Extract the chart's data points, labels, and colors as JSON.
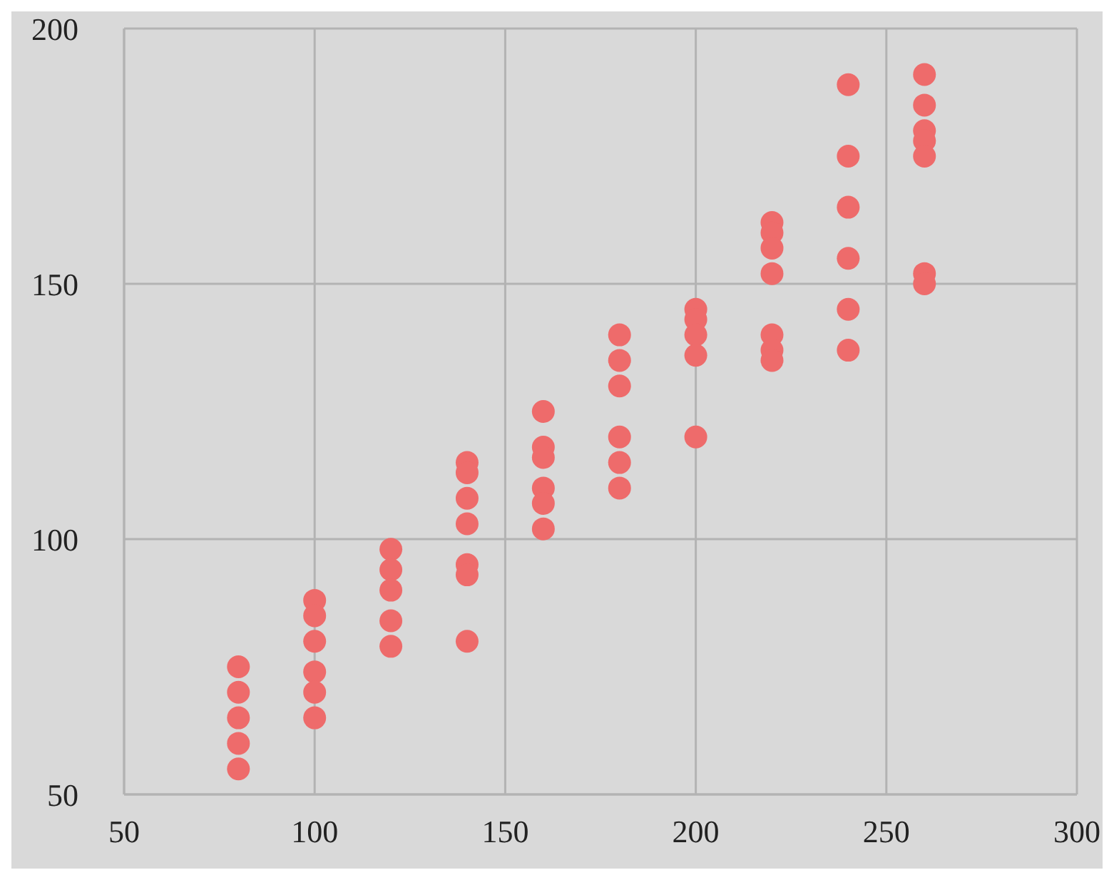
{
  "chart_data": {
    "type": "scatter",
    "x": [
      80,
      80,
      80,
      80,
      80,
      100,
      100,
      100,
      100,
      100,
      100,
      120,
      120,
      120,
      120,
      120,
      140,
      140,
      140,
      140,
      140,
      140,
      140,
      160,
      160,
      160,
      160,
      160,
      160,
      180,
      180,
      180,
      180,
      180,
      180,
      200,
      200,
      200,
      200,
      200,
      220,
      220,
      220,
      220,
      220,
      220,
      220,
      240,
      240,
      240,
      240,
      240,
      240,
      260,
      260,
      260,
      260,
      260,
      260,
      260
    ],
    "values": [
      75,
      70,
      65,
      60,
      55,
      88,
      85,
      80,
      74,
      70,
      65,
      98,
      94,
      90,
      84,
      79,
      115,
      113,
      108,
      103,
      95,
      93,
      80,
      125,
      118,
      116,
      110,
      107,
      102,
      140,
      135,
      130,
      120,
      115,
      110,
      145,
      143,
      140,
      136,
      120,
      162,
      160,
      157,
      152,
      140,
      137,
      135,
      189,
      175,
      165,
      155,
      145,
      137,
      191,
      185,
      180,
      178,
      175,
      152,
      150
    ],
    "color": "#ee6b6b",
    "marker": "circle",
    "xlim": [
      50,
      300
    ],
    "xticks": [
      50,
      100,
      150,
      200,
      250,
      300
    ],
    "ylim": [
      50,
      200
    ],
    "yticks": [
      50,
      100,
      150,
      200
    ],
    "grid": true,
    "legend": false
  }
}
